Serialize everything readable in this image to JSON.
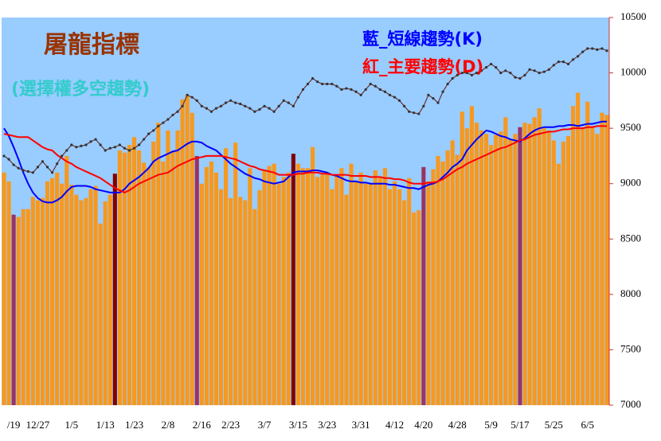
{
  "chart_data": {
    "type": "combo",
    "title": "屠龍指標",
    "subtitle": "(選擇權多空趨勢)",
    "categories": [
      null,
      null,
      "/19",
      null,
      null,
      null,
      null,
      "12/27",
      null,
      null,
      null,
      null,
      null,
      null,
      "1/5",
      null,
      null,
      null,
      null,
      null,
      null,
      "1/13",
      null,
      null,
      null,
      null,
      null,
      "1/23",
      null,
      null,
      null,
      null,
      null,
      null,
      "2/8",
      null,
      null,
      null,
      null,
      null,
      null,
      "2/16",
      null,
      null,
      null,
      null,
      null,
      "2/23",
      null,
      null,
      null,
      null,
      null,
      null,
      "3/7",
      null,
      null,
      null,
      null,
      null,
      null,
      "3/15",
      null,
      null,
      null,
      null,
      null,
      "3/23",
      null,
      null,
      null,
      null,
      null,
      null,
      "3/31",
      null,
      null,
      null,
      null,
      null,
      null,
      "4/12",
      null,
      null,
      null,
      null,
      null,
      "4/20",
      null,
      null,
      null,
      null,
      null,
      null,
      "4/28",
      null,
      null,
      null,
      null,
      null,
      null,
      "5/9",
      null,
      null,
      null,
      null,
      null,
      "5/17",
      null,
      null,
      null,
      null,
      null,
      null,
      "5/25",
      null,
      null,
      null,
      null,
      null,
      null,
      "6/5",
      null,
      null,
      null,
      null
    ],
    "series": [
      {
        "type": "bar",
        "color": "#f7981d",
        "colors": [
          "#f7981d",
          "#f7981d",
          "#993366",
          "#f7981d",
          "#f7981d",
          "#f7981d",
          "#f7981d",
          "#f7981d",
          "#f7981d",
          "#f7981d",
          "#f7981d",
          "#f7981d",
          "#f7981d",
          "#f7981d",
          "#f7981d",
          "#f7981d",
          "#f7981d",
          "#f7981d",
          "#f7981d",
          "#f7981d",
          "#f7981d",
          "#f7981d",
          "#f7981d",
          "#800000",
          "#f7981d",
          "#f7981d",
          "#f7981d",
          "#f7981d",
          "#f7981d",
          "#f7981d",
          "#f7981d",
          "#f7981d",
          "#f7981d",
          "#f7981d",
          "#f7981d",
          "#f7981d",
          "#f7981d",
          "#f7981d",
          "#f7981d",
          "#f7981d",
          "#993366",
          "#f7981d",
          "#f7981d",
          "#f7981d",
          "#f7981d",
          "#f7981d",
          "#f7981d",
          "#f7981d",
          "#f7981d",
          "#f7981d",
          "#f7981d",
          "#f7981d",
          "#f7981d",
          "#f7981d",
          "#f7981d",
          "#f7981d",
          "#f7981d",
          "#f7981d",
          "#f7981d",
          "#f7981d",
          "#800000",
          "#f7981d",
          "#f7981d",
          "#f7981d",
          "#f7981d",
          "#f7981d",
          "#f7981d",
          "#f7981d",
          "#f7981d",
          "#f7981d",
          "#f7981d",
          "#f7981d",
          "#f7981d",
          "#f7981d",
          "#f7981d",
          "#f7981d",
          "#f7981d",
          "#f7981d",
          "#f7981d",
          "#f7981d",
          "#f7981d",
          "#f7981d",
          "#f7981d",
          "#f7981d",
          "#f7981d",
          "#f7981d",
          "#f7981d",
          "#993366",
          "#f7981d",
          "#f7981d",
          "#f7981d",
          "#f7981d",
          "#f7981d",
          "#f7981d",
          "#f7981d",
          "#f7981d",
          "#f7981d",
          "#f7981d",
          "#f7981d",
          "#f7981d",
          "#f7981d",
          "#f7981d",
          "#f7981d",
          "#f7981d",
          "#f7981d",
          "#f7981d",
          "#f7981d",
          "#993366",
          "#f7981d",
          "#f7981d",
          "#f7981d",
          "#f7981d",
          "#f7981d",
          "#f7981d",
          "#f7981d",
          "#f7981d",
          "#f7981d",
          "#f7981d",
          "#f7981d",
          "#f7981d",
          "#f7981d",
          "#f7981d",
          "#f7981d",
          "#f7981d",
          "#f7981d",
          "#f7981d"
        ],
        "values": [
          9100,
          9020,
          8720,
          8700,
          8770,
          8770,
          8880,
          8850,
          8870,
          9020,
          9050,
          9100,
          9000,
          9250,
          8990,
          8900,
          8850,
          8870,
          8950,
          8980,
          8640,
          8840,
          8900,
          9090,
          9300,
          9280,
          9350,
          9420,
          9300,
          9190,
          9150,
          9380,
          9550,
          9200,
          9480,
          9300,
          9480,
          9760,
          9800,
          9640,
          9250,
          9000,
          9150,
          9200,
          9100,
          8950,
          9320,
          8870,
          9370,
          8880,
          8850,
          9140,
          8770,
          8940,
          9120,
          9160,
          9180,
          9000,
          9060,
          9100,
          9270,
          9180,
          9140,
          9140,
          9330,
          9060,
          9080,
          9100,
          8950,
          9080,
          9140,
          8900,
          9180,
          9020,
          9100,
          9000,
          9000,
          9120,
          9050,
          9140,
          8950,
          9020,
          8950,
          8850,
          9050,
          8740,
          8760,
          9150,
          9020,
          9130,
          9250,
          9200,
          9300,
          9390,
          9260,
          9650,
          9500,
          9700,
          9550,
          9480,
          9450,
          9350,
          9440,
          9470,
          9600,
          9400,
          9450,
          9510,
          9550,
          9540,
          9600,
          9680,
          9500,
          9480,
          9390,
          9180,
          9380,
          9430,
          9700,
          9820,
          9500,
          9740,
          9520,
          9450,
          9640,
          9620
        ]
      },
      {
        "type": "line",
        "name": "藍_短線趨勢(K)",
        "color": "#0000ff",
        "values": [
          9500,
          9430,
          9330,
          9220,
          9100,
          9000,
          8920,
          8870,
          8840,
          8830,
          8830,
          8850,
          8880,
          8930,
          8970,
          8980,
          8980,
          8980,
          8970,
          8950,
          8940,
          8930,
          8920,
          8920,
          8920,
          8950,
          9000,
          9030,
          9060,
          9100,
          9140,
          9200,
          9230,
          9250,
          9270,
          9290,
          9300,
          9330,
          9360,
          9380,
          9380,
          9370,
          9340,
          9320,
          9300,
          9260,
          9220,
          9180,
          9150,
          9120,
          9090,
          9070,
          9050,
          9040,
          9020,
          9010,
          9000,
          9010,
          9020,
          9060,
          9100,
          9110,
          9110,
          9110,
          9120,
          9120,
          9110,
          9100,
          9080,
          9070,
          9050,
          9030,
          9020,
          9020,
          9010,
          9010,
          9000,
          9000,
          9000,
          9000,
          8990,
          8990,
          8980,
          8970,
          8960,
          8960,
          8950,
          8970,
          8990,
          9000,
          9020,
          9060,
          9100,
          9150,
          9180,
          9220,
          9300,
          9350,
          9400,
          9440,
          9480,
          9470,
          9450,
          9430,
          9420,
          9400,
          9390,
          9380,
          9410,
          9450,
          9480,
          9500,
          9510,
          9510,
          9510,
          9520,
          9520,
          9530,
          9530,
          9520,
          9530,
          9540,
          9540,
          9550,
          9560,
          9560
        ]
      },
      {
        "type": "line",
        "name": "紅_主要趨勢(D)",
        "color": "#ff0000",
        "values": [
          9450,
          9440,
          9430,
          9420,
          9420,
          9420,
          9390,
          9360,
          9330,
          9310,
          9300,
          9260,
          9230,
          9200,
          9180,
          9150,
          9130,
          9110,
          9090,
          9070,
          9050,
          9020,
          8990,
          8960,
          8940,
          8920,
          8940,
          8970,
          9000,
          9020,
          9040,
          9060,
          9080,
          9090,
          9100,
          9130,
          9160,
          9180,
          9200,
          9220,
          9230,
          9240,
          9250,
          9250,
          9250,
          9250,
          9240,
          9230,
          9220,
          9200,
          9180,
          9160,
          9150,
          9130,
          9120,
          9110,
          9100,
          9080,
          9080,
          9080,
          9080,
          9090,
          9090,
          9100,
          9100,
          9100,
          9090,
          9090,
          9080,
          9080,
          9080,
          9080,
          9070,
          9070,
          9070,
          9070,
          9060,
          9060,
          9060,
          9050,
          9050,
          9040,
          9040,
          9030,
          9010,
          9000,
          9000,
          9000,
          9010,
          9010,
          9020,
          9040,
          9070,
          9100,
          9130,
          9150,
          9180,
          9200,
          9220,
          9240,
          9260,
          9280,
          9300,
          9320,
          9330,
          9350,
          9370,
          9390,
          9400,
          9420,
          9440,
          9450,
          9460,
          9470,
          9470,
          9480,
          9490,
          9490,
          9500,
          9500,
          9500,
          9510,
          9510,
          9520,
          9520,
          9520
        ]
      },
      {
        "type": "line",
        "color": "#663333",
        "markers": true,
        "values": [
          9250,
          9220,
          9170,
          9140,
          9120,
          9110,
          9100,
          9150,
          9200,
          9150,
          9100,
          9180,
          9250,
          9300,
          9350,
          9330,
          9340,
          9350,
          9380,
          9400,
          9350,
          9300,
          9320,
          9330,
          9350,
          9320,
          9300,
          9320,
          9350,
          9400,
          9450,
          9480,
          9520,
          9550,
          9580,
          9620,
          9650,
          9700,
          9800,
          9780,
          9750,
          9700,
          9680,
          9650,
          9680,
          9700,
          9730,
          9750,
          9730,
          9720,
          9700,
          9680,
          9650,
          9670,
          9700,
          9680,
          9650,
          9700,
          9750,
          9730,
          9700,
          9780,
          9850,
          9900,
          9950,
          9920,
          9900,
          9900,
          9900,
          9880,
          9850,
          9860,
          9850,
          9830,
          9800,
          9850,
          9900,
          9880,
          9850,
          9830,
          9800,
          9780,
          9750,
          9700,
          9650,
          9640,
          9630,
          9700,
          9800,
          9770,
          9730,
          9830,
          9900,
          9950,
          9980,
          10000,
          10000,
          9980,
          10000,
          10020,
          10050,
          10080,
          10050,
          10000,
          10020,
          10000,
          9960,
          9950,
          9980,
          10030,
          10020,
          10000,
          10010,
          10030,
          10070,
          10100,
          10100,
          10080,
          10120,
          10150,
          10190,
          10220,
          10220,
          10210,
          10220,
          10200
        ]
      }
    ],
    "ylim": [
      7000,
      10500
    ],
    "yticks": [
      7000,
      7500,
      8000,
      8500,
      9000,
      9500,
      10000,
      10500
    ],
    "background": "#99ccff"
  }
}
